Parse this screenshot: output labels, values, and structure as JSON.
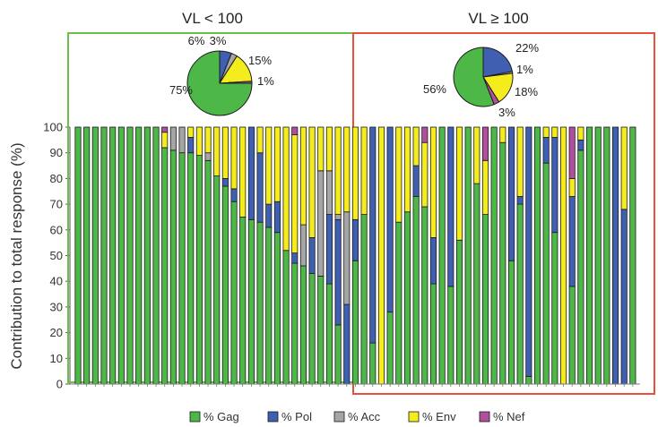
{
  "chart_data": [
    {
      "type": "bar",
      "stacked": true,
      "ylabel": "Contribution to total response (%)",
      "ylim": [
        0,
        100
      ],
      "yticks": [
        0,
        10,
        20,
        30,
        40,
        50,
        60,
        70,
        80,
        90,
        100
      ],
      "grid": false,
      "legend_position": "bottom",
      "series": [
        {
          "name": "% Gag",
          "color": "#4db848"
        },
        {
          "name": "% Pol",
          "color": "#3f5fb0"
        },
        {
          "name": "% Acc",
          "color": "#a5a5a5"
        },
        {
          "name": "% Env",
          "color": "#f4ec1c"
        },
        {
          "name": "% Nef",
          "color": "#b14e9e"
        }
      ],
      "groups": [
        {
          "title": "VL < 100",
          "frame_color": "#6cc04a",
          "bars": [
            [
              100,
              0,
              0,
              0,
              0
            ],
            [
              100,
              0,
              0,
              0,
              0
            ],
            [
              100,
              0,
              0,
              0,
              0
            ],
            [
              100,
              0,
              0,
              0,
              0
            ],
            [
              100,
              0,
              0,
              0,
              0
            ],
            [
              100,
              0,
              0,
              0,
              0
            ],
            [
              100,
              0,
              0,
              0,
              0
            ],
            [
              100,
              0,
              0,
              0,
              0
            ],
            [
              100,
              0,
              0,
              0,
              0
            ],
            [
              100,
              0,
              0,
              0,
              0
            ],
            [
              92,
              0,
              0,
              6,
              2
            ],
            [
              91,
              0,
              9,
              0,
              0
            ],
            [
              90,
              0,
              10,
              0,
              0
            ],
            [
              90,
              6,
              0,
              4,
              0
            ],
            [
              89,
              0,
              0,
              11,
              0
            ],
            [
              87,
              0,
              3,
              10,
              0
            ],
            [
              81,
              0,
              0,
              19,
              0
            ],
            [
              77,
              3,
              0,
              20,
              0
            ],
            [
              71,
              5,
              0,
              24,
              0
            ],
            [
              65,
              0,
              0,
              35,
              0
            ],
            [
              64,
              36,
              0,
              0,
              0
            ],
            [
              63,
              27,
              0,
              10,
              0
            ],
            [
              61,
              9,
              0,
              30,
              0
            ],
            [
              59,
              12,
              0,
              29,
              0
            ],
            [
              52,
              0,
              0,
              48,
              0
            ],
            [
              47,
              4,
              0,
              46,
              3
            ],
            [
              46,
              0,
              16,
              38,
              0
            ],
            [
              43,
              14,
              0,
              43,
              0
            ],
            [
              42,
              0,
              41,
              17,
              0
            ],
            [
              39,
              27,
              17,
              17,
              0
            ],
            [
              23,
              41,
              2,
              34,
              0
            ],
            [
              0,
              31,
              36,
              33,
              0
            ]
          ]
        },
        {
          "title": "VL ≥ 100",
          "frame_color": "#e8503a",
          "bars": [
            [
              48,
              16,
              0,
              36,
              0
            ],
            [
              66,
              0,
              0,
              34,
              0
            ],
            [
              16,
              84,
              0,
              0,
              0
            ],
            [
              0,
              0,
              0,
              100,
              0
            ],
            [
              28,
              72,
              0,
              0,
              0
            ],
            [
              63,
              0,
              0,
              37,
              0
            ],
            [
              67,
              0,
              0,
              33,
              0
            ],
            [
              73,
              12,
              0,
              15,
              0
            ],
            [
              69,
              0,
              0,
              25,
              6
            ],
            [
              39,
              18,
              0,
              43,
              0
            ],
            [
              100,
              0,
              0,
              0,
              0
            ],
            [
              38,
              62,
              0,
              0,
              0
            ],
            [
              56,
              0,
              0,
              44,
              0
            ],
            [
              100,
              0,
              0,
              0,
              0
            ],
            [
              78,
              0,
              0,
              22,
              0
            ],
            [
              66,
              0,
              0,
              21,
              13
            ],
            [
              100,
              0,
              0,
              0,
              0
            ],
            [
              94,
              0,
              0,
              6,
              0
            ],
            [
              48,
              52,
              0,
              0,
              0
            ],
            [
              70,
              3,
              0,
              27,
              0
            ],
            [
              3,
              97,
              0,
              0,
              0
            ],
            [
              100,
              0,
              0,
              0,
              0
            ],
            [
              86,
              10,
              0,
              4,
              0
            ],
            [
              59,
              37,
              0,
              4,
              0
            ],
            [
              0,
              0,
              0,
              100,
              0
            ],
            [
              38,
              35,
              0,
              7,
              20
            ],
            [
              91,
              4,
              0,
              5,
              0
            ],
            [
              100,
              0,
              0,
              0,
              0
            ],
            [
              100,
              0,
              0,
              0,
              0
            ],
            [
              100,
              0,
              0,
              0,
              0
            ],
            [
              0,
              100,
              0,
              0,
              0
            ],
            [
              0,
              68,
              0,
              32,
              0
            ],
            [
              100,
              0,
              0,
              0,
              0
            ]
          ]
        }
      ]
    },
    {
      "type": "pie",
      "title": "VL < 100",
      "slices": [
        {
          "series": "% Gag",
          "value": 75,
          "label": "75%"
        },
        {
          "series": "% Pol",
          "value": 6,
          "label": "6%"
        },
        {
          "series": "% Acc",
          "value": 3,
          "label": "3%"
        },
        {
          "series": "% Env",
          "value": 15,
          "label": "15%"
        },
        {
          "series": "% Nef",
          "value": 1,
          "label": "1%"
        }
      ]
    },
    {
      "type": "pie",
      "title": "VL ≥ 100",
      "slices": [
        {
          "series": "% Gag",
          "value": 56,
          "label": "56%"
        },
        {
          "series": "% Pol",
          "value": 22,
          "label": "22%"
        },
        {
          "series": "% Acc",
          "value": 1,
          "label": "1%"
        },
        {
          "series": "% Env",
          "value": 18,
          "label": "18%"
        },
        {
          "series": "% Nef",
          "value": 3,
          "label": "3%"
        }
      ]
    }
  ]
}
